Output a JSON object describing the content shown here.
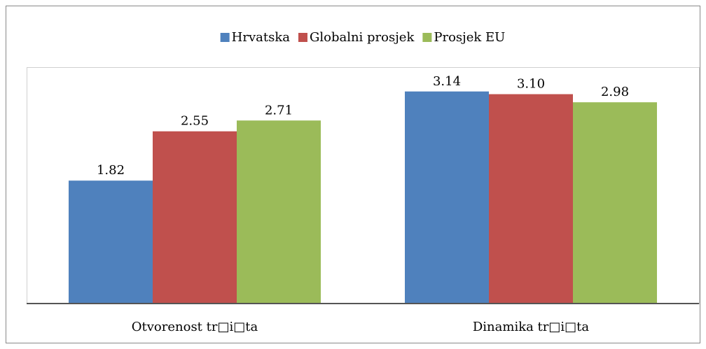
{
  "chart_data": {
    "type": "bar",
    "categories": [
      "Otvorenost tr□i□ta",
      "Dinamika tr□i□ta"
    ],
    "series": [
      {
        "name": "Hrvatska",
        "color": "#4f81bd",
        "values": [
          1.82,
          3.14
        ],
        "value_labels": [
          "1.82",
          "3.14"
        ]
      },
      {
        "name": "Globalni prosjek",
        "color": "#c0504d",
        "values": [
          2.55,
          3.1
        ],
        "value_labels": [
          "2.55",
          "3.10"
        ]
      },
      {
        "name": "Prosjek EU",
        "color": "#9bbb59",
        "values": [
          2.71,
          2.98
        ],
        "value_labels": [
          "2.71",
          "2.98"
        ]
      }
    ],
    "ylim": [
      0,
      3.5
    ],
    "legend": "top"
  }
}
